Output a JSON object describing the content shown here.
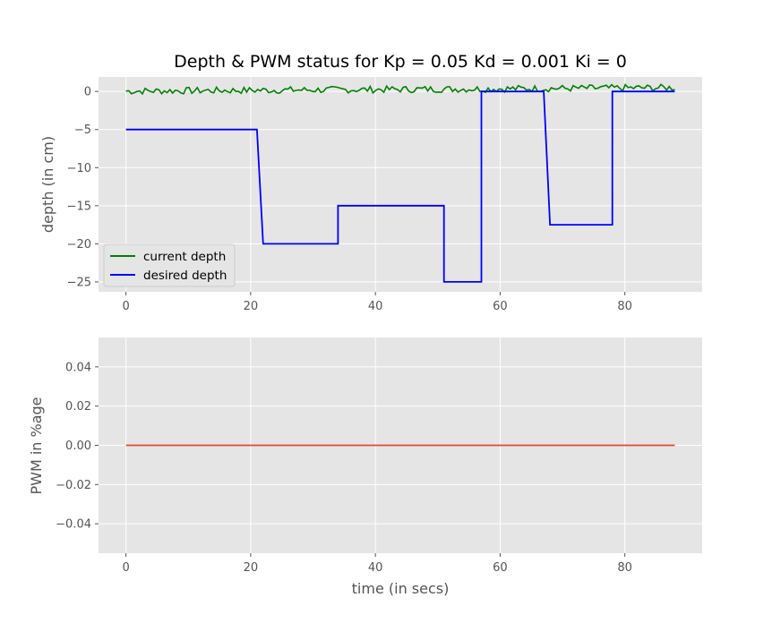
{
  "chart_data": [
    {
      "type": "line",
      "title": "Depth & PWM status for Kp = 0.05 Kd = 0.001 Ki = 0",
      "xlabel": "",
      "ylabel": "depth (in cm)",
      "xlim": [
        -4.4,
        92.4
      ],
      "ylim": [
        -26.3,
        1.9
      ],
      "xticks": [
        0,
        20,
        40,
        60,
        80
      ],
      "yticks": [
        0,
        -5,
        -10,
        -15,
        -20,
        -25
      ],
      "xtick_labels": [
        "0",
        "20",
        "40",
        "60",
        "80"
      ],
      "ytick_labels": [
        "0",
        "−5",
        "−10",
        "−15",
        "−20",
        "−25"
      ],
      "grid": true,
      "legend": "lower-left",
      "series": [
        {
          "name": "current depth",
          "color": "#008000",
          "style": "noisy",
          "x_range": [
            0,
            88
          ],
          "baseline_start": 0.05,
          "baseline_end": 0.5,
          "noise_amplitude": 0.45
        },
        {
          "name": "desired depth",
          "color": "#0000ff",
          "x": [
            0,
            21,
            22,
            34,
            34,
            51,
            51,
            57,
            57,
            67,
            68,
            78,
            78,
            88
          ],
          "y": [
            -5,
            -5,
            -20,
            -20,
            -15,
            -15,
            -25,
            -25,
            0,
            0,
            -17.5,
            -17.5,
            0,
            0
          ]
        }
      ]
    },
    {
      "type": "line",
      "title": "",
      "xlabel": "time (in secs)",
      "ylabel": "PWM in %age",
      "xlim": [
        -4.4,
        92.4
      ],
      "ylim": [
        -0.055,
        0.055
      ],
      "xticks": [
        0,
        20,
        40,
        60,
        80
      ],
      "yticks": [
        0.04,
        0.02,
        0.0,
        -0.02,
        -0.04
      ],
      "xtick_labels": [
        "0",
        "20",
        "40",
        "60",
        "80"
      ],
      "ytick_labels": [
        "0.04",
        "0.02",
        "0.00",
        "−0.02",
        "−0.04"
      ],
      "grid": true,
      "series": [
        {
          "color": "#e24a33",
          "x": [
            0,
            88
          ],
          "y": [
            0,
            0
          ]
        }
      ]
    }
  ]
}
